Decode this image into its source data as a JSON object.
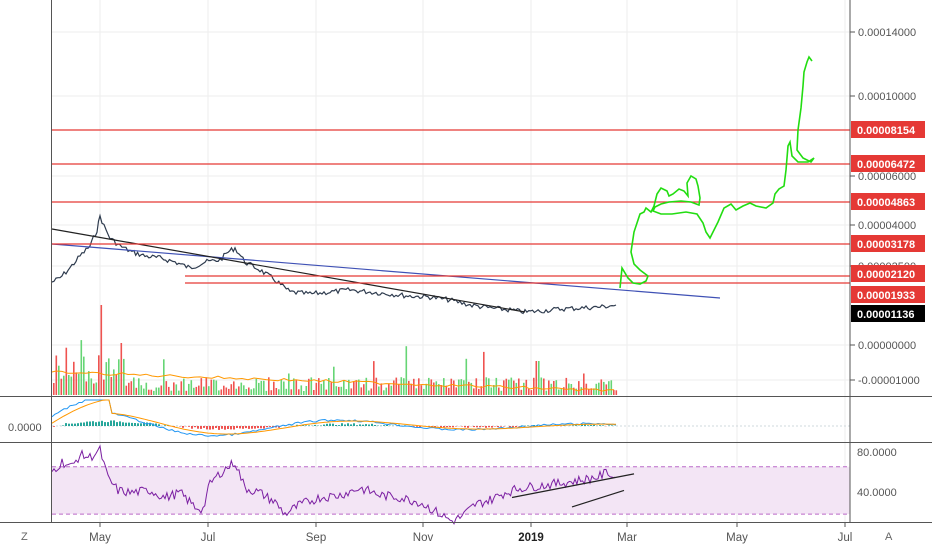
{
  "chart_data": {
    "type": "line",
    "price_axis": {
      "ticks": [
        "0.00014000",
        "0.00010000",
        "0.00006000",
        "0.00004000",
        "0.00002500",
        "0.00000000",
        "-0.00001000"
      ],
      "last_price": "0.00001136"
    },
    "x_axis": {
      "tick_labels": [
        "May",
        "Jul",
        "Sep",
        "Nov",
        "2019",
        "Mar",
        "May",
        "Jul"
      ]
    },
    "horizontal_levels": [
      {
        "label": "0.00008154",
        "color": "#e53935"
      },
      {
        "label": "0.00006472",
        "color": "#e53935"
      },
      {
        "label": "0.00004863",
        "color": "#e53935"
      },
      {
        "label": "0.00003178",
        "color": "#e53935"
      },
      {
        "label": "0.00002120",
        "color": "#e53935"
      },
      {
        "label": "0.00001933",
        "color": "#e53935"
      }
    ],
    "macd_panel": {
      "value_label": "0.0000"
    },
    "rsi_panel": {
      "ticks": [
        "80.0000",
        "40.0000"
      ],
      "upper_band": 70,
      "lower_band": 30
    },
    "colors": {
      "price_line": "#2e3b4e",
      "trend_blue": "#3f51b5",
      "trend_black": "#222222",
      "projection": "#22dd11",
      "volume_up": "#66d575",
      "volume_down": "#ef5350",
      "macd": "#2196f3",
      "signal": "#ff9800",
      "rsi": "#7b1fa2",
      "rsi_fill": "#f3e5f5"
    }
  },
  "ui": {
    "corner_left": "Z",
    "corner_right": "A"
  }
}
